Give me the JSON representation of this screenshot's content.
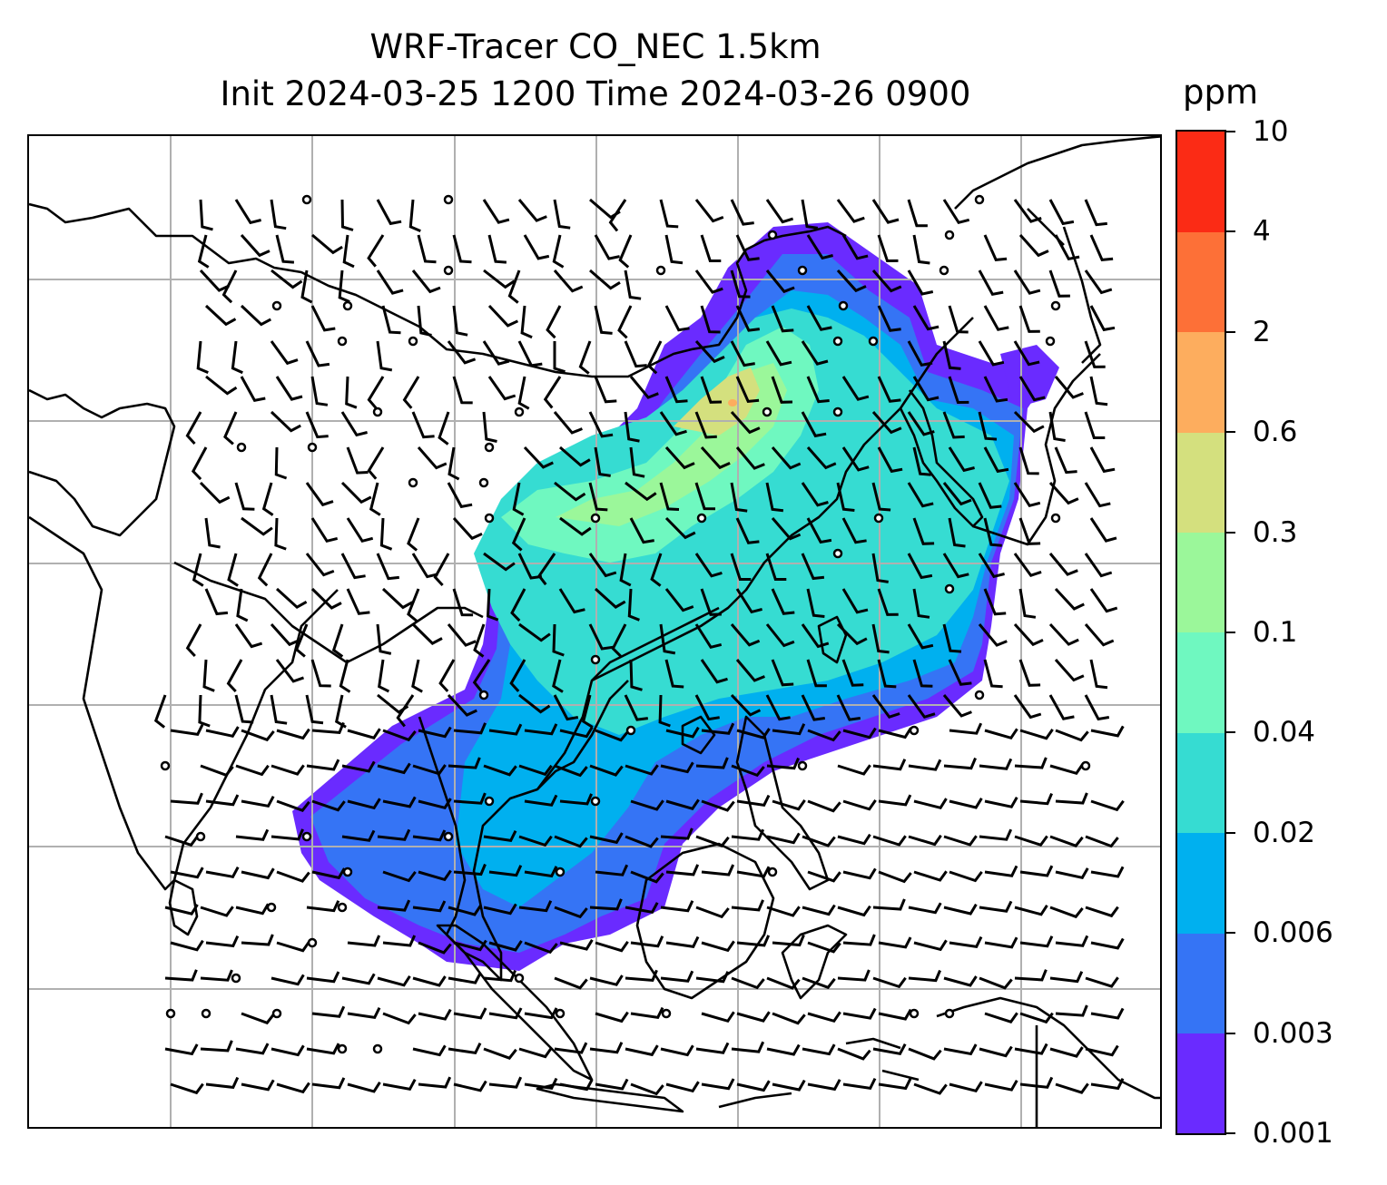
{
  "title": {
    "line1": "WRF-Tracer CO_NEC 1.5km",
    "line2": "Init 2024-03-25 1200 Time 2024-03-26 0900"
  },
  "colorbar": {
    "unit": "ppm",
    "levels": [
      "0.001",
      "0.003",
      "0.006",
      "0.02",
      "0.04",
      "0.1",
      "0.3",
      "0.6",
      "2",
      "4",
      "10"
    ],
    "colors": [
      "#6a2bff",
      "#3574f5",
      "#00b0ef",
      "#36dcd2",
      "#6ff8c0",
      "#9bf79a",
      "#d4e07e",
      "#fdad5e",
      "#fd7037",
      "#fb2b15"
    ]
  },
  "map": {
    "gridlines": true,
    "coastline_color": "#000000",
    "gridline_color": "#b0b0b0",
    "layers": [
      "coastlines",
      "country-borders",
      "CO tracer concentration (filled contours)",
      "wind barbs",
      "calm-wind circles"
    ]
  }
}
